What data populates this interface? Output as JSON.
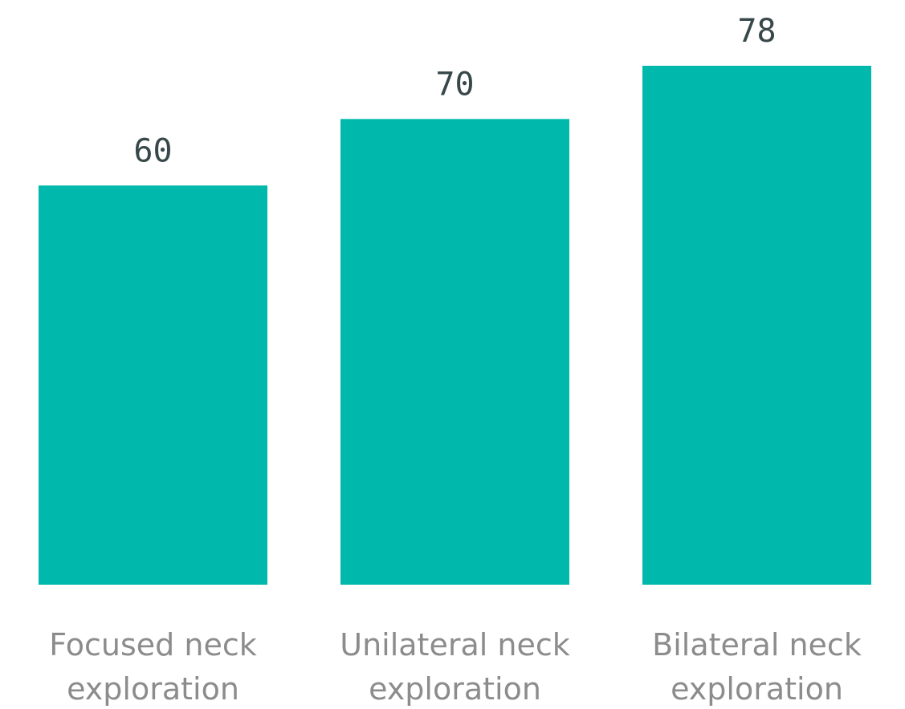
{
  "chart_data": {
    "type": "bar",
    "categories": [
      [
        "Focused neck",
        "exploration"
      ],
      [
        "Unilateral neck",
        "exploration"
      ],
      [
        "Bilateral neck",
        "exploration"
      ]
    ],
    "values": [
      60,
      70,
      78
    ],
    "data_labels": [
      "60",
      "70",
      "78"
    ],
    "title": "",
    "xlabel": "",
    "ylabel": "",
    "ylim": [
      0,
      78
    ],
    "grid": false,
    "legend": "none",
    "bar_color": "#00b8ac"
  }
}
